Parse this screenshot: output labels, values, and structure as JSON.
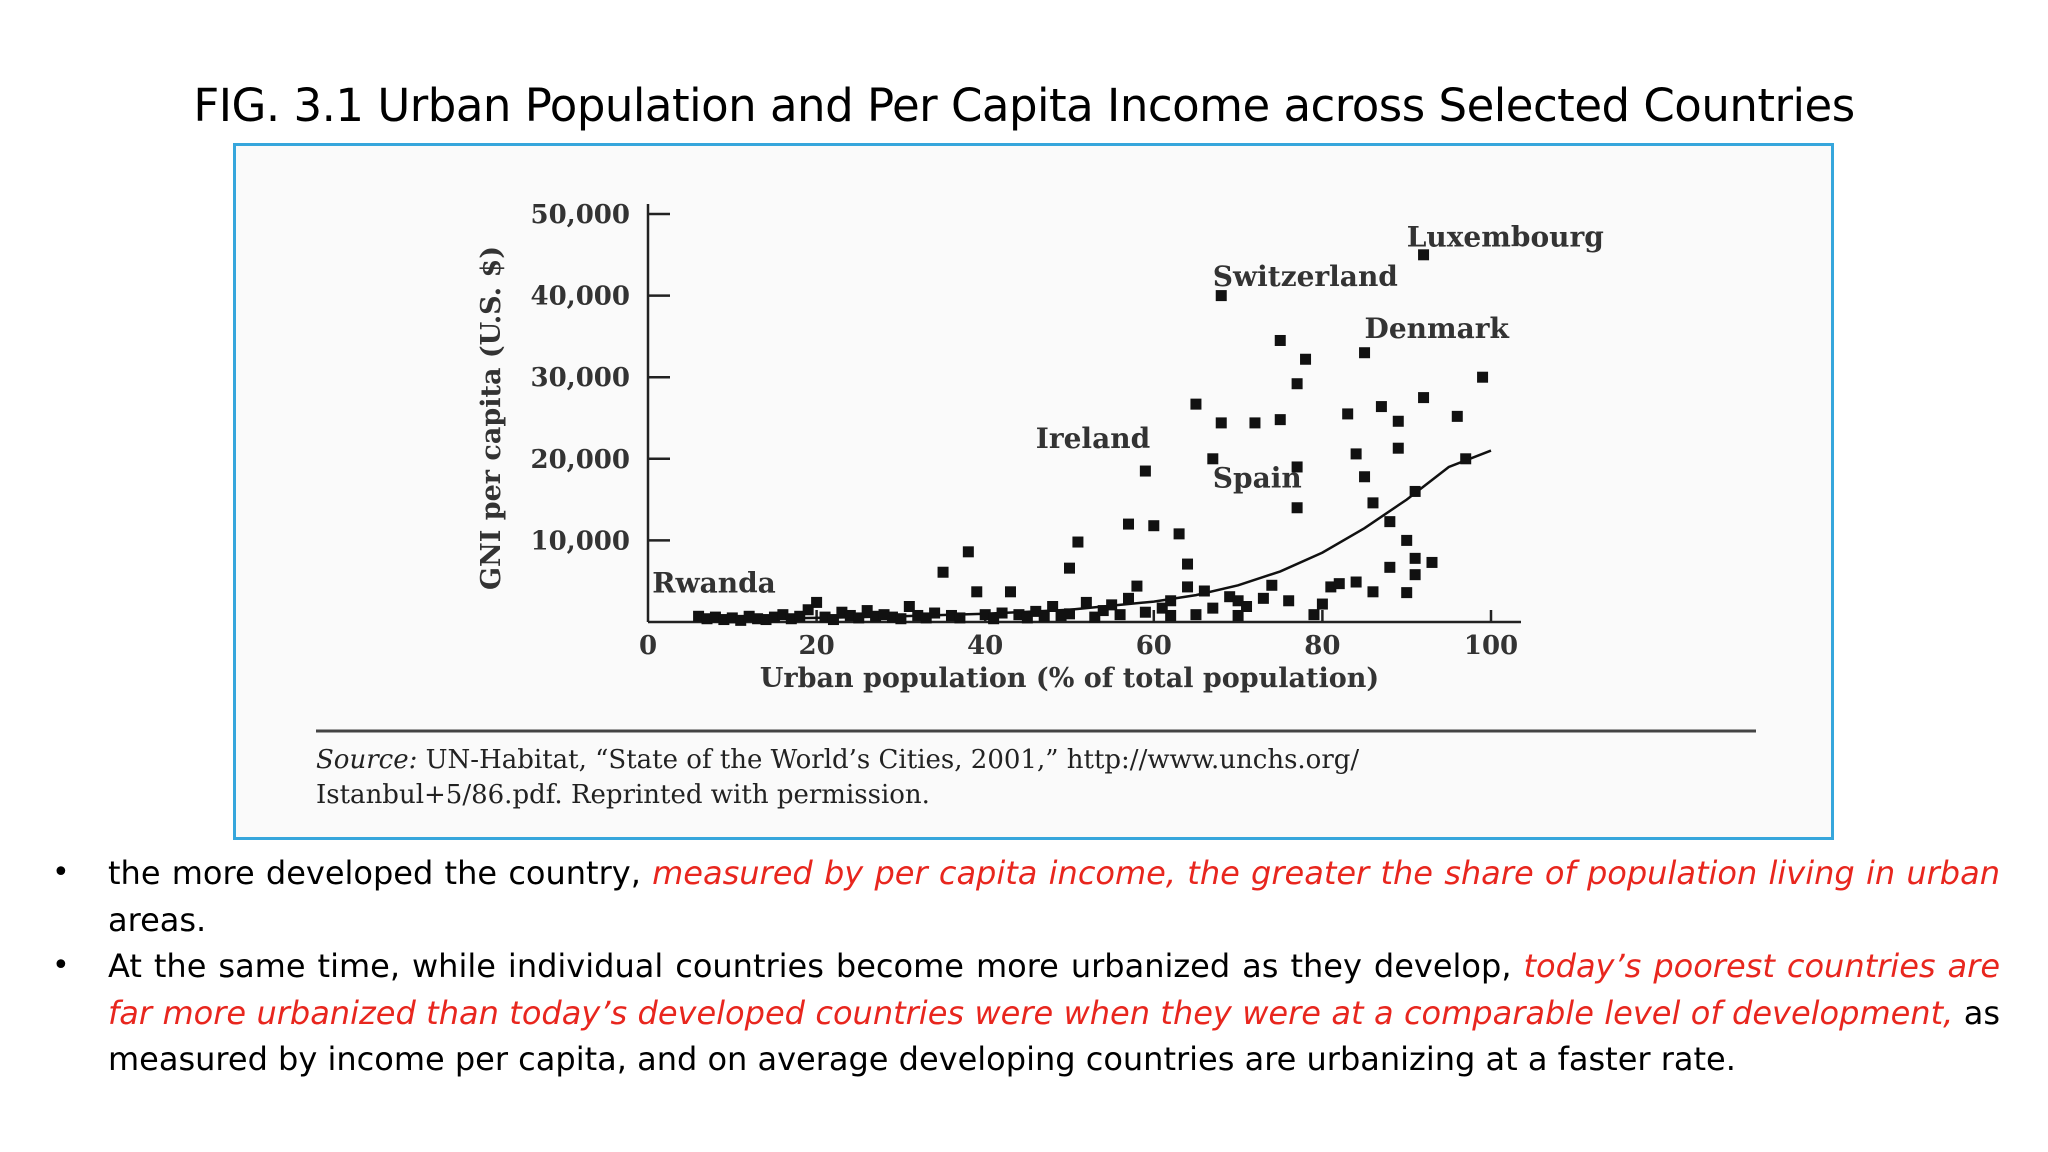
{
  "slide": {
    "title": "FIG. 3.1 Urban Population and Per Capita Income across Selected Countries"
  },
  "colors": {
    "accent_border": "#36a6dc",
    "emphasis": "#e8261e",
    "marker": "#111111"
  },
  "chart_data": {
    "type": "scatter",
    "title": "",
    "xlabel": "Urban population (% of total population)",
    "ylabel": "GNI per capita (U.S. $)",
    "xlim": [
      0,
      100
    ],
    "ylim": [
      0,
      50000
    ],
    "x_ticks": [
      0,
      20,
      40,
      60,
      80,
      100
    ],
    "x_tick_labels": [
      "0",
      "20",
      "40",
      "60",
      "80",
      "100"
    ],
    "y_ticks": [
      10000,
      20000,
      30000,
      40000,
      50000
    ],
    "y_tick_labels": [
      "10,000",
      "20,000",
      "30,000",
      "40,000",
      "50,000"
    ],
    "grid": false,
    "legend": "none",
    "annotations": [
      {
        "text": "Rwanda",
        "x": 0.5,
        "y": 3600,
        "point": [
          6,
          700
        ]
      },
      {
        "text": "Ireland",
        "x": 46,
        "y": 21300,
        "point": [
          59,
          18500
        ]
      },
      {
        "text": "Switzerland",
        "x": 67,
        "y": 41200,
        "point": [
          68,
          40000
        ]
      },
      {
        "text": "Luxembourg",
        "x": 90,
        "y": 46000,
        "point": [
          92,
          45000
        ]
      },
      {
        "text": "Denmark",
        "x": 85,
        "y": 34800,
        "point": [
          85,
          33000
        ]
      },
      {
        "text": "Spain",
        "x": 67,
        "y": 16500,
        "point": [
          77,
          14000
        ]
      }
    ],
    "trend_curve": {
      "x": [
        6,
        20,
        30,
        40,
        50,
        60,
        65,
        70,
        75,
        80,
        85,
        90,
        95,
        100
      ],
      "y": [
        300,
        500,
        700,
        1000,
        1500,
        2500,
        3300,
        4500,
        6200,
        8500,
        11500,
        15000,
        19000,
        21000
      ]
    },
    "series": [
      {
        "points": [
          [
            6,
            700
          ],
          [
            7,
            400
          ],
          [
            8,
            600
          ],
          [
            9,
            300
          ],
          [
            10,
            500
          ],
          [
            11,
            200
          ],
          [
            12,
            700
          ],
          [
            13,
            400
          ],
          [
            14,
            300
          ],
          [
            15,
            600
          ],
          [
            16,
            900
          ],
          [
            17,
            400
          ],
          [
            18,
            700
          ],
          [
            19,
            1500
          ],
          [
            20,
            2400
          ],
          [
            21,
            600
          ],
          [
            22,
            300
          ],
          [
            23,
            1200
          ],
          [
            24,
            800
          ],
          [
            25,
            500
          ],
          [
            26,
            1400
          ],
          [
            27,
            700
          ],
          [
            28,
            900
          ],
          [
            29,
            600
          ],
          [
            30,
            400
          ],
          [
            31,
            1900
          ],
          [
            32,
            800
          ],
          [
            33,
            500
          ],
          [
            34,
            1100
          ],
          [
            35,
            6100
          ],
          [
            36,
            800
          ],
          [
            37,
            500
          ],
          [
            38,
            8600
          ],
          [
            39,
            3700
          ],
          [
            40,
            900
          ],
          [
            41,
            400
          ],
          [
            42,
            1100
          ],
          [
            43,
            3700
          ],
          [
            44,
            900
          ],
          [
            45,
            500
          ],
          [
            46,
            1300
          ],
          [
            47,
            700
          ],
          [
            48,
            1900
          ],
          [
            49,
            800
          ],
          [
            50,
            1000
          ],
          [
            50,
            6600
          ],
          [
            51,
            9800
          ],
          [
            52,
            2400
          ],
          [
            53,
            600
          ],
          [
            54,
            1400
          ],
          [
            55,
            2100
          ],
          [
            56,
            900
          ],
          [
            57,
            2900
          ],
          [
            57,
            12000
          ],
          [
            58,
            4400
          ],
          [
            59,
            18500
          ],
          [
            59,
            1200
          ],
          [
            60,
            11800
          ],
          [
            61,
            1700
          ],
          [
            62,
            800
          ],
          [
            62,
            2600
          ],
          [
            63,
            10800
          ],
          [
            64,
            7100
          ],
          [
            64,
            4300
          ],
          [
            65,
            900
          ],
          [
            65,
            26700
          ],
          [
            66,
            3800
          ],
          [
            67,
            1700
          ],
          [
            67,
            20000
          ],
          [
            68,
            40000
          ],
          [
            68,
            24400
          ],
          [
            69,
            3100
          ],
          [
            70,
            800
          ],
          [
            70,
            2600
          ],
          [
            71,
            1900
          ],
          [
            72,
            24400
          ],
          [
            73,
            2900
          ],
          [
            74,
            4500
          ],
          [
            75,
            34500
          ],
          [
            75,
            24800
          ],
          [
            76,
            2600
          ],
          [
            77,
            14000
          ],
          [
            77,
            19000
          ],
          [
            77,
            29200
          ],
          [
            78,
            32200
          ],
          [
            79,
            900
          ],
          [
            80,
            2200
          ],
          [
            81,
            4300
          ],
          [
            82,
            4700
          ],
          [
            83,
            25500
          ],
          [
            84,
            4900
          ],
          [
            84,
            20600
          ],
          [
            85,
            33000
          ],
          [
            85,
            17800
          ],
          [
            86,
            14600
          ],
          [
            86,
            3700
          ],
          [
            87,
            26400
          ],
          [
            88,
            12300
          ],
          [
            88,
            6700
          ],
          [
            89,
            24600
          ],
          [
            89,
            21300
          ],
          [
            90,
            3600
          ],
          [
            90,
            10000
          ],
          [
            91,
            16000
          ],
          [
            91,
            5800
          ],
          [
            91,
            7800
          ],
          [
            92,
            45000
          ],
          [
            92,
            27500
          ],
          [
            93,
            7300
          ],
          [
            96,
            25200
          ],
          [
            97,
            20000
          ],
          [
            99,
            30000
          ]
        ]
      }
    ],
    "source_note_label": "Source:",
    "source_note_rest": " UN-Habitat, “State of the World’s Cities, 2001,” http://www.unchs.org/",
    "source_note_line2": "Istanbul+5/86.pdf. Reprinted with permission."
  },
  "bullets": [
    {
      "parts": [
        {
          "text": "the more developed the country, ",
          "red": false
        },
        {
          "text": "measured by per capita income, the greater the share of population living in urban",
          "red": true
        },
        {
          "text": " areas.",
          "red": false
        }
      ]
    },
    {
      "parts": [
        {
          "text": "At the same time, while individual countries become more urbanized as they develop, ",
          "red": false
        },
        {
          "text": "today’s poorest countries are far more urbanized than today’s developed countries were when they were at a comparable level of development,",
          "red": true
        },
        {
          "text": " as measured by income per capita, and on average developing countries are urbanizing at a faster rate.",
          "red": false
        }
      ]
    }
  ]
}
